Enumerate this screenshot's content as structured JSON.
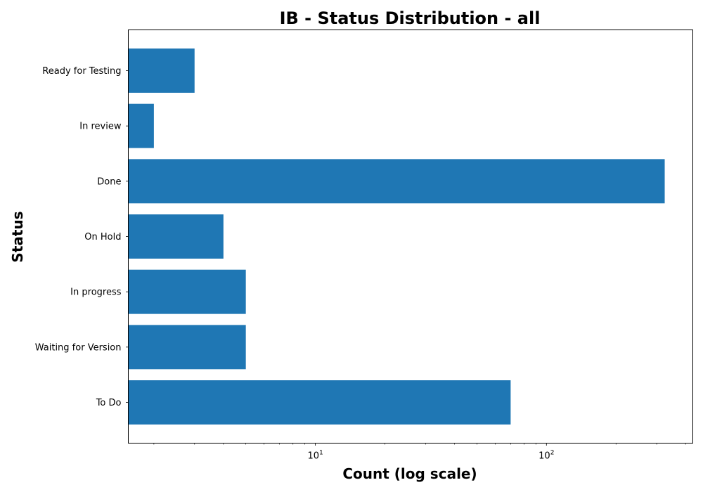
{
  "chart_data": {
    "type": "bar",
    "orientation": "horizontal",
    "title": "IB - Status Distribution - all",
    "xlabel": "Count (log scale)",
    "ylabel": "Status",
    "x_scale": "log",
    "xlim": [
      1.55,
      430
    ],
    "x_ticks": [
      {
        "base": "10",
        "exp": "1",
        "value": 10
      },
      {
        "base": "10",
        "exp": "2",
        "value": 100
      }
    ],
    "categories": [
      "To Do",
      "Waiting for Version",
      "In progress",
      "On Hold",
      "Done",
      "In review",
      "Ready for Testing"
    ],
    "values": [
      70,
      5,
      5,
      4,
      325,
      2,
      3
    ],
    "bar_color": "#1f77b4",
    "grid": false,
    "legend": "none"
  }
}
